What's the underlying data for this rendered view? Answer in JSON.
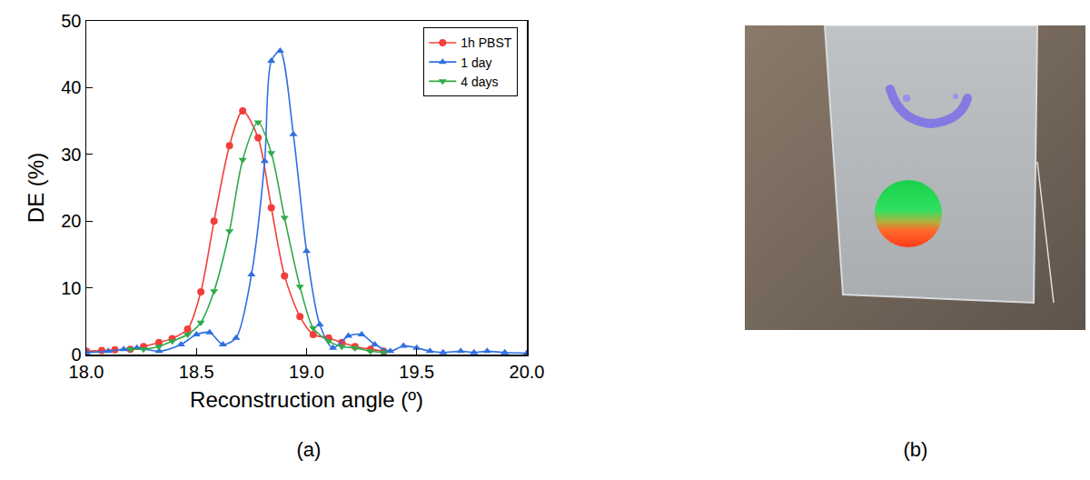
{
  "chart_data": {
    "type": "line",
    "caption": "(a)",
    "x_label": "Reconstruction angle (º)",
    "y_label": "DE (%)",
    "xlim": [
      18.0,
      20.0
    ],
    "xticks": [
      {
        "value": 18.0,
        "label": "18.0"
      },
      {
        "value": 18.5,
        "label": "18.5"
      },
      {
        "value": 19.0,
        "label": "19.0"
      },
      {
        "value": 19.5,
        "label": "19.5"
      },
      {
        "value": 20.0,
        "label": "20.0"
      }
    ],
    "ylim": [
      0,
      50
    ],
    "yticks": [
      0,
      10,
      20,
      30,
      40,
      50
    ],
    "grid": false,
    "legend": "top right",
    "series": [
      {
        "name": "1h PBST",
        "color": "#f0403a",
        "marker": "circle",
        "line_style": "solid",
        "x": [
          18.0,
          18.07,
          18.13,
          18.2,
          18.26,
          18.33,
          18.39,
          18.46,
          18.52,
          18.58,
          18.65,
          18.71,
          18.78,
          18.84,
          18.9,
          18.97,
          19.03,
          19.1,
          19.16,
          19.22,
          19.29,
          19.35
        ],
        "values": [
          0.5,
          0.6,
          0.7,
          0.8,
          1.2,
          1.8,
          2.4,
          3.8,
          9.4,
          20.0,
          31.3,
          36.5,
          32.5,
          22.0,
          11.8,
          5.7,
          3.0,
          2.5,
          1.8,
          1.2,
          0.8,
          0.5
        ]
      },
      {
        "name": "1 day",
        "color": "#2f6fe0",
        "marker": "triangle-up",
        "line_style": "solid",
        "x": [
          18.0,
          18.1,
          18.17,
          18.23,
          18.33,
          18.43,
          18.5,
          18.56,
          18.62,
          18.68,
          18.75,
          18.81,
          18.84,
          18.88,
          18.94,
          19.0,
          19.06,
          19.12,
          19.19,
          19.25,
          19.31,
          19.38,
          19.44,
          19.5,
          19.56,
          19.62,
          19.7,
          19.76,
          19.82,
          19.9,
          20.0
        ],
        "values": [
          0.3,
          0.5,
          0.8,
          1.0,
          0.5,
          1.5,
          3.0,
          3.3,
          1.5,
          2.5,
          12.0,
          29.0,
          44.0,
          45.5,
          33.0,
          15.5,
          4.5,
          1.0,
          2.8,
          3.0,
          1.5,
          0.5,
          1.3,
          1.0,
          0.5,
          0.3,
          0.5,
          0.3,
          0.5,
          0.3,
          0.2
        ]
      },
      {
        "name": "4 days",
        "color": "#2eaa4a",
        "marker": "triangle-down",
        "line_style": "solid",
        "x": [
          18.2,
          18.26,
          18.33,
          18.39,
          18.46,
          18.52,
          18.58,
          18.65,
          18.71,
          18.78,
          18.84,
          18.9,
          18.97,
          19.03,
          19.1,
          19.16,
          19.22,
          19.29,
          19.35
        ],
        "values": [
          0.8,
          0.8,
          1.2,
          2.0,
          3.0,
          4.8,
          9.5,
          18.5,
          29.2,
          34.8,
          30.2,
          20.5,
          10.2,
          4.0,
          2.0,
          1.2,
          1.0,
          0.5,
          0.3
        ]
      }
    ]
  },
  "photo": {
    "caption": "(b)"
  }
}
